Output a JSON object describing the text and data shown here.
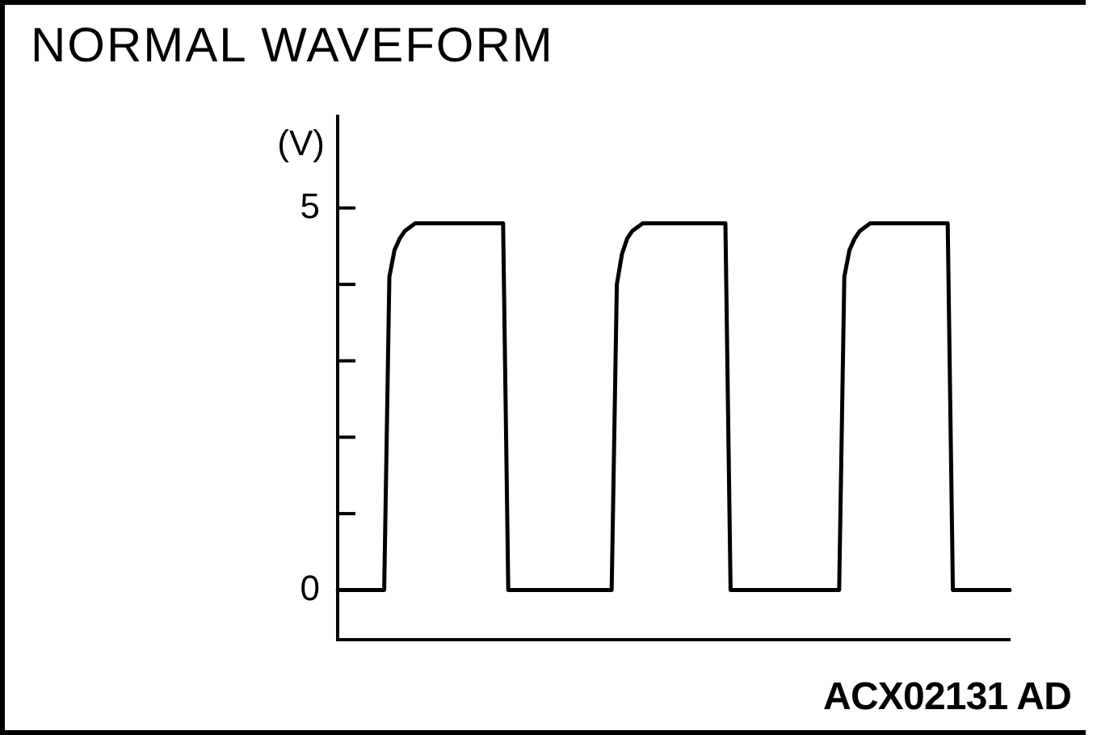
{
  "chart_data": {
    "type": "line",
    "title": "NORMAL WAVEFORM",
    "ylabel": "(V)",
    "annotations": [
      "ACX02131 AD"
    ],
    "categories": [
      null,
      null,
      null,
      null,
      null,
      null,
      null,
      null,
      null,
      null,
      null,
      null,
      null,
      null,
      null,
      null,
      null,
      null,
      null,
      null,
      null,
      null,
      null,
      null,
      null,
      null,
      null,
      null,
      null,
      null,
      null,
      null,
      null,
      null,
      null,
      null,
      null,
      null,
      null,
      null,
      null,
      null,
      null,
      null,
      null,
      null,
      null,
      null,
      null,
      null,
      null,
      null,
      null,
      null,
      null,
      null,
      null,
      null,
      null,
      null,
      null,
      null,
      null,
      null,
      null,
      null,
      null,
      null,
      null,
      null,
      null,
      null,
      null,
      null,
      null,
      null,
      null,
      null,
      null,
      null,
      null,
      null,
      null,
      null,
      null,
      null,
      null,
      null,
      null,
      null,
      null,
      null,
      null,
      null,
      null,
      null,
      null,
      null,
      null,
      null,
      null,
      null,
      null,
      null,
      null,
      null,
      null,
      null,
      null,
      null,
      null,
      null,
      null,
      null,
      null,
      null,
      null,
      null,
      null,
      null,
      null,
      null,
      null,
      null,
      null,
      null,
      null,
      null,
      null,
      null,
      null
    ],
    "series": [
      {
        "color": "#000000",
        "values": [
          0,
          0,
          0,
          0,
          0,
          0,
          0,
          0,
          0,
          0,
          4.1,
          4.45,
          4.6,
          4.7,
          4.75,
          4.8,
          4.8,
          4.8,
          4.8,
          4.8,
          4.8,
          4.8,
          4.8,
          4.8,
          4.8,
          4.8,
          4.8,
          4.8,
          4.8,
          4.8,
          4.8,
          4.8,
          4.8,
          0,
          0,
          0,
          0,
          0,
          0,
          0,
          0,
          0,
          0,
          0,
          0,
          0,
          0,
          0,
          0,
          0,
          0,
          0,
          0,
          0,
          4.0,
          4.4,
          4.6,
          4.7,
          4.75,
          4.8,
          4.8,
          4.8,
          4.8,
          4.8,
          4.8,
          4.8,
          4.8,
          4.8,
          4.8,
          4.8,
          4.8,
          4.8,
          4.8,
          4.8,
          4.8,
          4.8,
          0,
          0,
          0,
          0,
          0,
          0,
          0,
          0,
          0,
          0,
          0,
          0,
          0,
          0,
          0,
          0,
          0,
          0,
          0,
          0,
          0,
          0,
          4.1,
          4.45,
          4.6,
          4.7,
          4.75,
          4.8,
          4.8,
          4.8,
          4.8,
          4.8,
          4.8,
          4.8,
          4.8,
          4.8,
          4.8,
          4.8,
          4.8,
          4.8,
          4.8,
          4.8,
          4.8,
          0,
          0,
          0,
          0,
          0,
          0,
          0,
          0,
          0,
          0,
          0,
          0
        ]
      }
    ],
    "ylim": [
      -0.65,
      6.2
    ],
    "yticks": [
      0,
      {
        "value": 1,
        "label": null
      },
      {
        "value": 2,
        "label": null
      },
      {
        "value": 3,
        "label": null
      },
      {
        "value": 4,
        "label": null
      },
      5
    ],
    "tick_labels": "y",
    "grid": false,
    "marker": "none",
    "line_style": "solid"
  }
}
